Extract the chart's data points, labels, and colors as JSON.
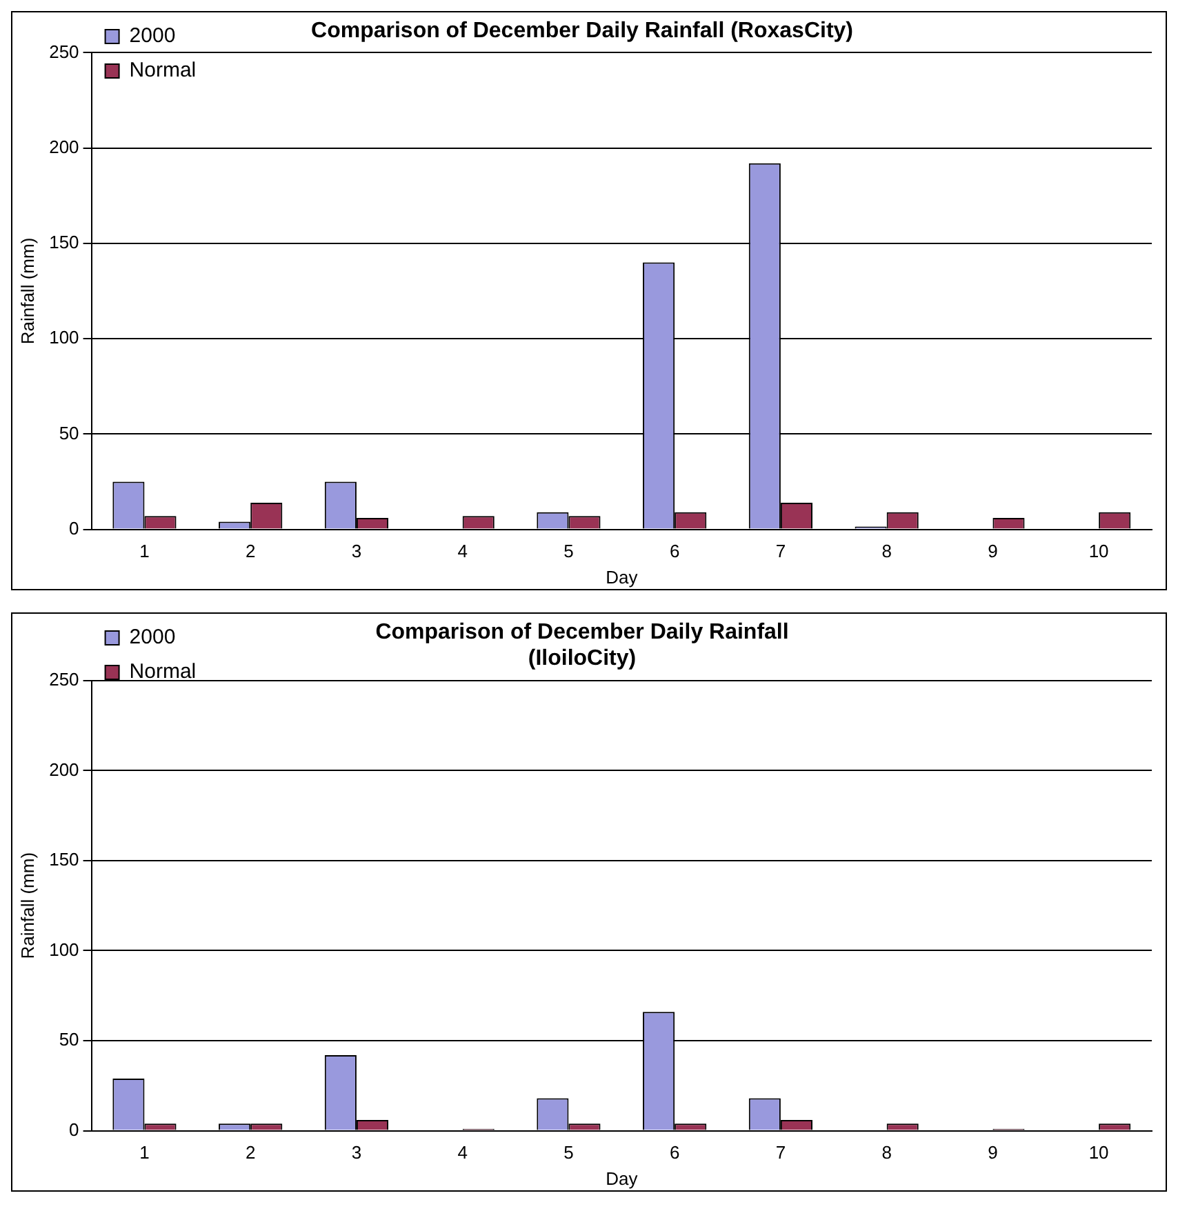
{
  "chart_data": [
    {
      "type": "bar",
      "title": "Comparison of December Daily Rainfall (RoxasCity)",
      "xlabel": "Day",
      "ylabel": "Rainfall (mm)",
      "categories": [
        "1",
        "2",
        "3",
        "4",
        "5",
        "6",
        "7",
        "8",
        "9",
        "10"
      ],
      "series": [
        {
          "name": "2000",
          "color": "#9999dd",
          "values": [
            25,
            4,
            25,
            0,
            9,
            140,
            192,
            1.5,
            0,
            0
          ]
        },
        {
          "name": "Normal",
          "color": "#993355",
          "values": [
            7,
            14,
            6,
            7,
            7,
            9,
            14,
            9,
            6,
            9
          ]
        }
      ],
      "ylim": [
        0,
        250
      ],
      "yticks": [
        0,
        50,
        100,
        150,
        200,
        250
      ],
      "grid": "y",
      "legend": "top left"
    },
    {
      "type": "bar",
      "title": "Comparison of December Daily Rainfall\n(IloiloCity)",
      "xlabel": "Day",
      "ylabel": "Rainfall (mm)",
      "categories": [
        "1",
        "2",
        "3",
        "4",
        "5",
        "6",
        "7",
        "8",
        "9",
        "10"
      ],
      "series": [
        {
          "name": "2000",
          "color": "#9999dd",
          "values": [
            29,
            4,
            42,
            null,
            18,
            66,
            18,
            null,
            null,
            0
          ]
        },
        {
          "name": "Normal",
          "color": "#993355",
          "values": [
            4,
            4,
            6,
            1,
            4,
            4,
            6,
            4,
            1,
            4
          ]
        }
      ],
      "ylim": [
        0,
        250
      ],
      "yticks": [
        0,
        50,
        100,
        150,
        200,
        250
      ],
      "grid": "y",
      "legend": "top left"
    }
  ]
}
